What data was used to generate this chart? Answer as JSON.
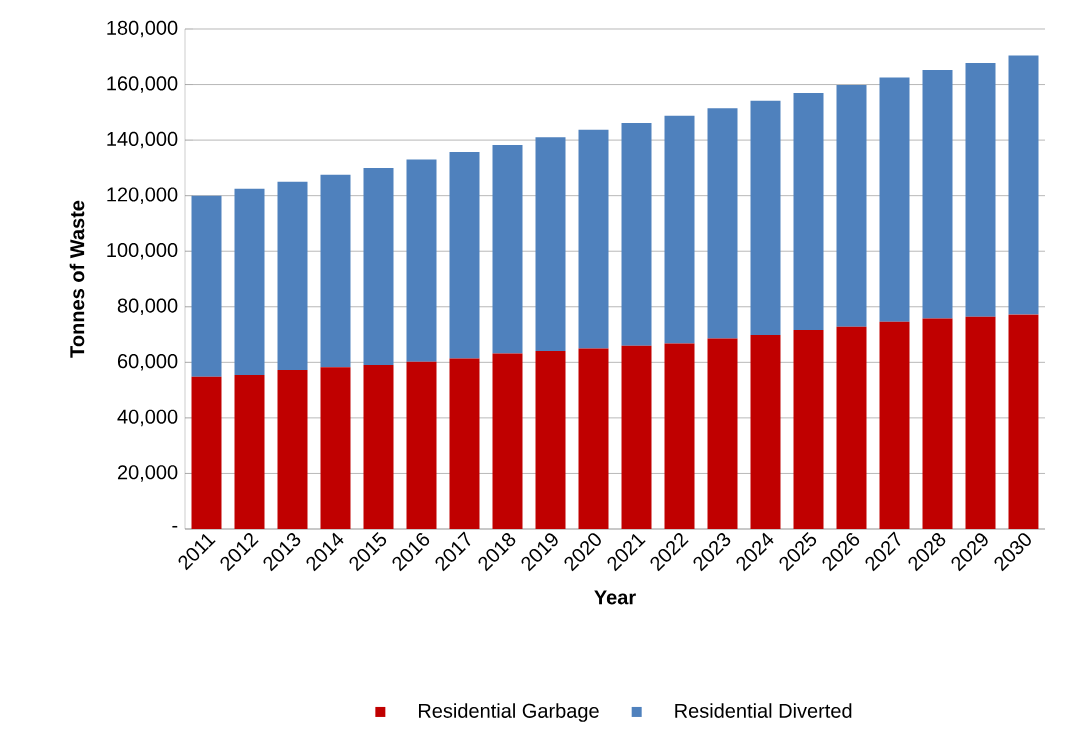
{
  "chart_data": {
    "type": "bar",
    "stacked": true,
    "xlabel": "Year",
    "ylabel": "Tonnes of Waste",
    "categories": [
      "2011",
      "2012",
      "2013",
      "2014",
      "2015",
      "2016",
      "2017",
      "2018",
      "2019",
      "2020",
      "2021",
      "2022",
      "2023",
      "2024",
      "2025",
      "2026",
      "2027",
      "2028",
      "2029",
      "2030"
    ],
    "series": [
      {
        "name": "Residential Garbage",
        "color": "#c00000",
        "values": [
          54800,
          55400,
          57200,
          58200,
          59000,
          60200,
          61400,
          63200,
          64100,
          65000,
          66000,
          66800,
          68600,
          69800,
          71600,
          72800,
          74600,
          75800,
          76400,
          77200
        ]
      },
      {
        "name": "Residential Diverted",
        "color": "#4f81bd",
        "values": [
          65200,
          67100,
          67800,
          69300,
          71000,
          72800,
          74300,
          75000,
          76900,
          78700,
          80200,
          82000,
          82900,
          84400,
          85400,
          87000,
          87900,
          89400,
          91400,
          93300
        ]
      }
    ],
    "ylim": [
      0,
      180000
    ],
    "yticks": [
      {
        "value": 0,
        "label": "-"
      },
      {
        "value": 20000,
        "label": "20,000"
      },
      {
        "value": 40000,
        "label": "40,000"
      },
      {
        "value": 60000,
        "label": "60,000"
      },
      {
        "value": 80000,
        "label": "80,000"
      },
      {
        "value": 100000,
        "label": "100,000"
      },
      {
        "value": 120000,
        "label": "120,000"
      },
      {
        "value": 140000,
        "label": "140,000"
      },
      {
        "value": 160000,
        "label": "160,000"
      },
      {
        "value": 180000,
        "label": "180,000"
      }
    ],
    "grid": "y",
    "legend": "bottom"
  }
}
